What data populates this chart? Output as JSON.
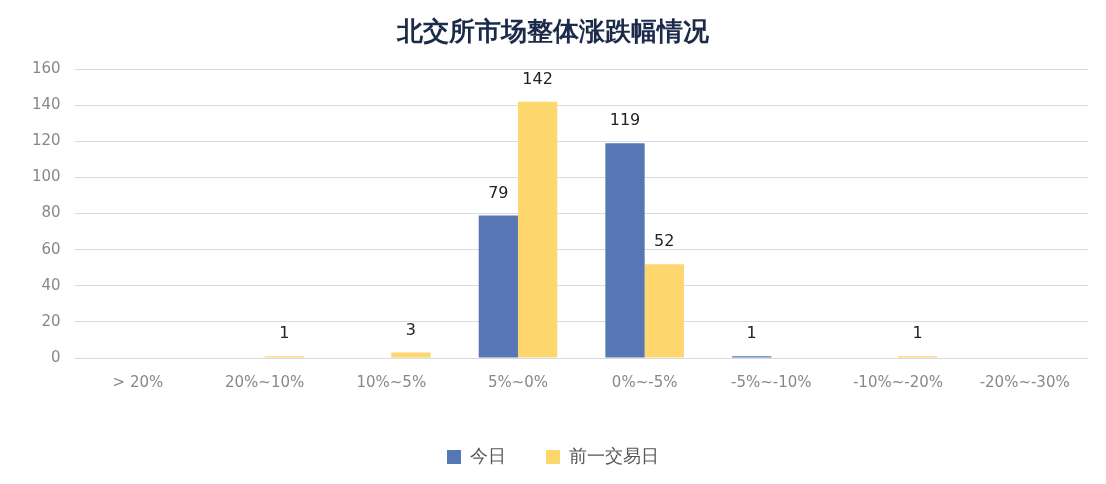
{
  "chart_data": {
    "type": "bar",
    "title": "北交所市场整体涨跌幅情况",
    "categories": [
      "> 20%",
      "20%~10%",
      "10%~5%",
      "5%~0%",
      "0%~-5%",
      "-5%~-10%",
      "-10%~-20%",
      "-20%~-30%"
    ],
    "series": [
      {
        "name": "今日",
        "color": "#5677b3",
        "values": [
          null,
          null,
          null,
          79,
          119,
          1,
          null,
          null
        ]
      },
      {
        "name": "前一交易日",
        "color": "#fdd66e",
        "values": [
          null,
          1,
          3,
          142,
          52,
          null,
          1,
          null
        ]
      }
    ],
    "ylim": [
      0,
      160
    ],
    "yticks": [
      0,
      20,
      40,
      60,
      80,
      100,
      120,
      140,
      160
    ],
    "grid": "y",
    "legend": "bottom",
    "data_labels": true
  }
}
